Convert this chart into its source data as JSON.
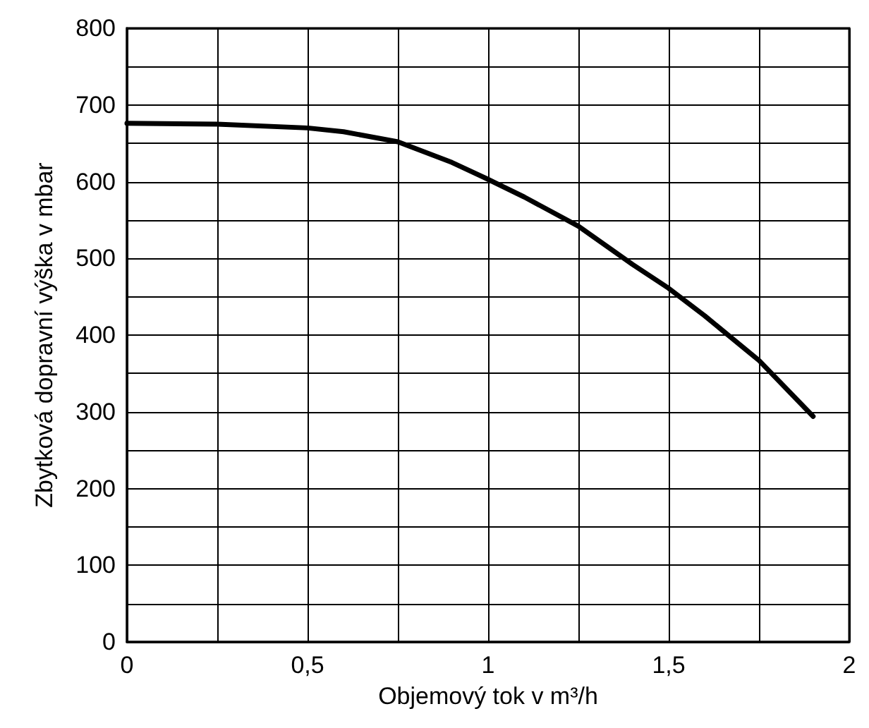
{
  "chart_data": {
    "type": "line",
    "xlabel": "Objemový tok v m³/h",
    "ylabel": "Zbytková dopravní výška v mbar",
    "x": [
      0,
      0.25,
      0.5,
      0.6,
      0.75,
      0.9,
      1.0,
      1.1,
      1.25,
      1.4,
      1.5,
      1.6,
      1.75,
      1.9
    ],
    "series": [
      {
        "color": "#000000",
        "values": [
          676,
          675,
          670,
          665,
          652,
          625,
          603,
          580,
          542,
          492,
          461,
          425,
          367,
          294
        ]
      }
    ],
    "xlim": [
      0,
      2
    ],
    "ylim": [
      0,
      800
    ],
    "xticks": [
      0,
      {
        "value": 0.25,
        "label": null
      },
      {
        "value": 0.5,
        "label": "0,5"
      },
      {
        "value": 0.75,
        "label": null
      },
      1,
      {
        "value": 1.25,
        "label": null
      },
      {
        "value": 1.5,
        "label": "1,5"
      },
      {
        "value": 1.75,
        "label": null
      },
      2
    ],
    "yticks": [
      0,
      {
        "value": 50,
        "label": null
      },
      100,
      {
        "value": 150,
        "label": null
      },
      200,
      {
        "value": 250,
        "label": null
      },
      300,
      {
        "value": 350,
        "label": null
      },
      400,
      {
        "value": 450,
        "label": null
      },
      500,
      {
        "value": 550,
        "label": null
      },
      600,
      {
        "value": 650,
        "label": null
      },
      700,
      {
        "value": 750,
        "label": null
      },
      800
    ],
    "grid": true,
    "marker": "none",
    "line_style": "solid"
  }
}
